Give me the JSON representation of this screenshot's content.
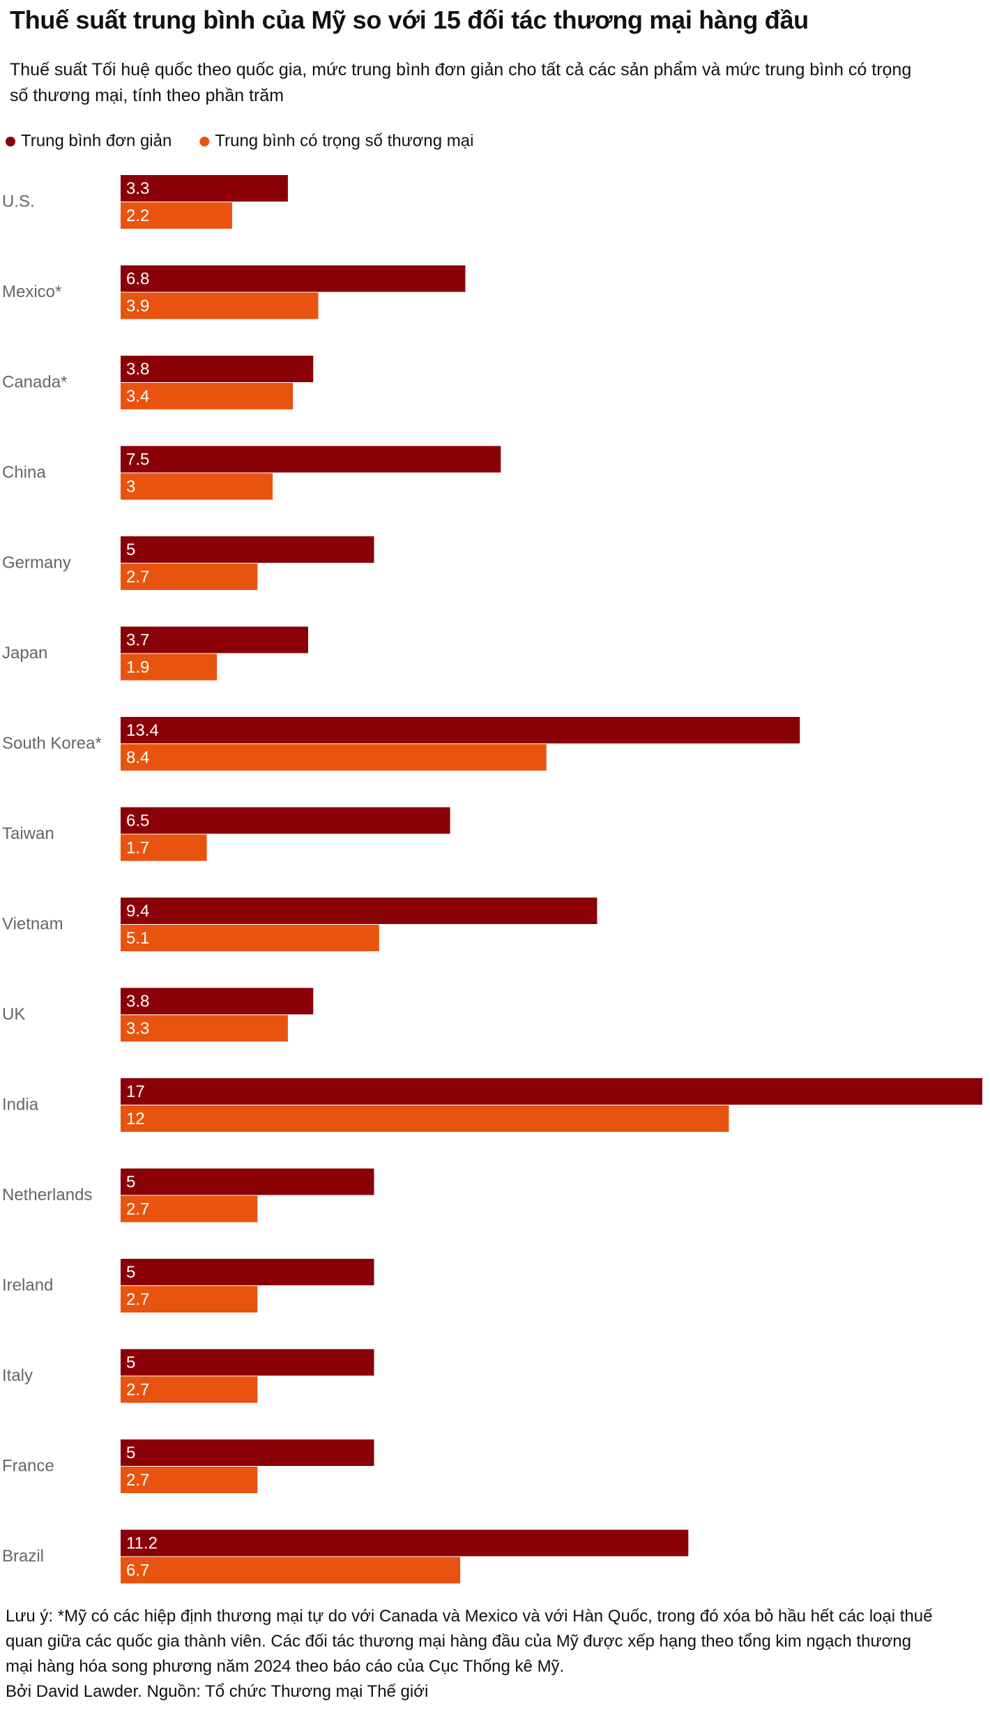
{
  "chart_data": {
    "type": "bar",
    "orientation": "horizontal",
    "title": "Thuế suất trung bình của Mỹ so với 15 đối tác thương mại hàng đầu",
    "subtitle": "Thuế suất Tối huệ quốc theo quốc gia, mức trung bình đơn giản cho tất cả các sản phẩm và mức trung bình có trọng số thương mại, tính theo phần trăm",
    "categories": [
      "U.S.",
      "Mexico*",
      "Canada*",
      "China",
      "Germany",
      "Japan",
      "South Korea*",
      "Taiwan",
      "Vietnam",
      "UK",
      "India",
      "Netherlands",
      "Ireland",
      "Italy",
      "France",
      "Brazil"
    ],
    "series": [
      {
        "name": "Trung bình đơn giản",
        "color": "#8a0007",
        "values": [
          3.3,
          6.8,
          3.8,
          7.5,
          5,
          3.7,
          13.4,
          6.5,
          9.4,
          3.8,
          17,
          5,
          5,
          5,
          5,
          11.2
        ]
      },
      {
        "name": "Trung bình có trọng số thương mại",
        "color": "#e8540f",
        "values": [
          2.2,
          3.9,
          3.4,
          3,
          2.7,
          1.9,
          8.4,
          1.7,
          5.1,
          3.3,
          12,
          2.7,
          2.7,
          2.7,
          2.7,
          6.7
        ]
      }
    ],
    "note": "Lưu ý: *Mỹ có các hiệp định thương mại tự do với Canada và Mexico và với Hàn Quốc, trong đó xóa bỏ hầu hết các loại thuế quan giữa các quốc gia thành viên. Các đối tác thương mại hàng đầu của Mỹ được xếp hạng theo tổng kim ngạch thương mại hàng hóa song phương năm 2024 theo báo cáo của Cục Thống kê Mỹ.",
    "byline": "Bởi David Lawder. Nguồn: Tổ chức Thương mại Thế giới"
  }
}
